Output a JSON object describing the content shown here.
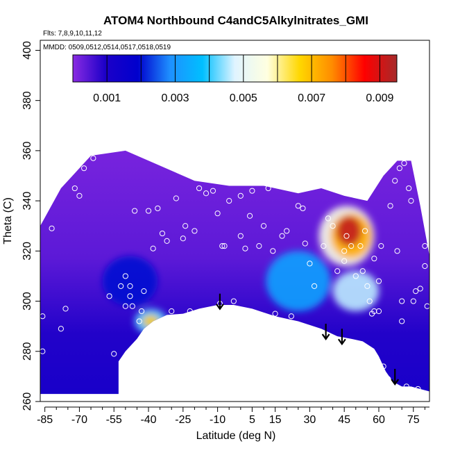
{
  "chart_data": {
    "type": "heatmap",
    "title": "ATOM4 Northbound C4andC5Alkylnitrates_GMI",
    "subtitle_flights": "Flts: 7,8,9,10,11,12",
    "subtitle_dates": "MMDD: 0509,0512,0514,0517,0518,0519",
    "xlabel": "Latitude (deg N)",
    "ylabel": "Theta (C)",
    "xlim": [
      -87,
      82
    ],
    "ylim": [
      260,
      404
    ],
    "x_ticks": [
      -85,
      -70,
      -55,
      -40,
      -25,
      -10,
      5,
      15,
      30,
      45,
      60,
      75
    ],
    "x_tick_labels": [
      "-85",
      "-70",
      "-55",
      "-40",
      "-25",
      "-10",
      "5",
      "15",
      "30",
      "45",
      "60",
      "75"
    ],
    "y_ticks": [
      260,
      280,
      300,
      320,
      340,
      360,
      380,
      400
    ],
    "y_tick_labels": [
      "260",
      "280",
      "300",
      "320",
      "340",
      "360",
      "380",
      "400"
    ],
    "colorbar": {
      "min": 0.0,
      "max": 0.0095,
      "tick_values": [
        0.001,
        0.003,
        0.005,
        0.007,
        0.009
      ],
      "tick_labels": [
        "0.001",
        "0.003",
        "0.005",
        "0.007",
        "0.009"
      ],
      "stops": [
        "#8a2be2",
        "#1c00c8",
        "#0000cd",
        "#1e90ff",
        "#00bfff",
        "#e0f4ff",
        "#ffffe0",
        "#ffd700",
        "#ff8c00",
        "#ff0000",
        "#a52a2a"
      ],
      "separators": [
        0.001,
        0.002,
        0.003,
        0.004,
        0.005,
        0.006,
        0.007,
        0.008,
        0.009
      ]
    },
    "terrain_lower_boundary": [
      [
        -87,
        263
      ],
      [
        -53,
        263
      ],
      [
        -53,
        276
      ],
      [
        -50,
        280
      ],
      [
        -45,
        285
      ],
      [
        -42,
        289
      ],
      [
        -38,
        292
      ],
      [
        -32,
        294.5
      ],
      [
        -25,
        295
      ],
      [
        -18,
        297
      ],
      [
        -10,
        298.5
      ],
      [
        -3,
        298.5
      ],
      [
        5,
        297
      ],
      [
        15,
        294
      ],
      [
        25,
        292
      ],
      [
        35,
        289
      ],
      [
        42,
        286
      ],
      [
        48,
        285
      ],
      [
        53,
        284
      ],
      [
        58,
        281
      ],
      [
        60,
        278
      ],
      [
        63,
        272
      ],
      [
        66,
        268
      ],
      [
        70,
        266
      ],
      [
        74,
        266
      ],
      [
        78,
        265
      ],
      [
        82,
        264
      ]
    ],
    "data_upper_boundary": [
      [
        -87,
        330
      ],
      [
        -78,
        345
      ],
      [
        -65,
        358
      ],
      [
        -50,
        360
      ],
      [
        -35,
        354
      ],
      [
        -20,
        348
      ],
      [
        -5,
        346
      ],
      [
        10,
        346
      ],
      [
        25,
        343
      ],
      [
        35,
        345
      ],
      [
        45,
        342
      ],
      [
        55,
        340
      ],
      [
        62,
        350
      ],
      [
        68,
        356
      ],
      [
        74,
        356
      ],
      [
        78,
        338
      ],
      [
        82,
        318
      ]
    ],
    "hotspots": [
      {
        "lat": 47,
        "theta": 328,
        "value": 0.0092,
        "rx": 5.5,
        "ry": 6
      },
      {
        "lat": 48,
        "theta": 326,
        "value": 0.0072,
        "rx": 9,
        "ry": 9
      },
      {
        "lat": 46,
        "theta": 326,
        "value": 0.0055,
        "rx": 12,
        "ry": 12
      },
      {
        "lat": -39,
        "theta": 292,
        "value": 0.0068,
        "rx": 3.5,
        "ry": 2.5
      },
      {
        "lat": -39,
        "theta": 292,
        "value": 0.0042,
        "rx": 7,
        "ry": 5
      },
      {
        "lat": 50,
        "theta": 304,
        "value": 0.0046,
        "rx": 10,
        "ry": 8
      },
      {
        "lat": 25,
        "theta": 308,
        "value": 0.0032,
        "rx": 14,
        "ry": 12
      },
      {
        "lat": -48,
        "theta": 308,
        "value": 0.002,
        "rx": 12,
        "ry": 10
      }
    ],
    "observations": [
      [
        -86,
        294
      ],
      [
        -86,
        280
      ],
      [
        -82,
        329
      ],
      [
        -78,
        289
      ],
      [
        -76,
        297
      ],
      [
        -72,
        345
      ],
      [
        -70,
        342
      ],
      [
        -68,
        353
      ],
      [
        -64,
        357
      ],
      [
        -62,
        360
      ],
      [
        -57,
        302
      ],
      [
        -55,
        279
      ],
      [
        -52,
        306
      ],
      [
        -50,
        310
      ],
      [
        -50,
        298
      ],
      [
        -48,
        302
      ],
      [
        -48,
        306
      ],
      [
        -47,
        298
      ],
      [
        -46,
        336
      ],
      [
        -44,
        292
      ],
      [
        -43,
        296
      ],
      [
        -42,
        304
      ],
      [
        -40,
        336
      ],
      [
        -38,
        321
      ],
      [
        -36,
        337
      ],
      [
        -34,
        327
      ],
      [
        -32,
        324
      ],
      [
        -30,
        296
      ],
      [
        -28,
        341
      ],
      [
        -25,
        325
      ],
      [
        -24,
        330
      ],
      [
        -22,
        296
      ],
      [
        -20,
        328
      ],
      [
        -18,
        345
      ],
      [
        -16,
        288
      ],
      [
        -15,
        343
      ],
      [
        -12,
        344
      ],
      [
        -10,
        335
      ],
      [
        -9,
        299
      ],
      [
        -8,
        322
      ],
      [
        -7,
        322
      ],
      [
        -5,
        340
      ],
      [
        -3,
        300
      ],
      [
        0,
        342
      ],
      [
        0,
        326
      ],
      [
        2,
        321
      ],
      [
        4,
        334
      ],
      [
        5,
        344
      ],
      [
        8,
        322
      ],
      [
        10,
        330
      ],
      [
        12,
        345
      ],
      [
        14,
        320
      ],
      [
        15,
        295
      ],
      [
        18,
        326
      ],
      [
        20,
        328
      ],
      [
        22,
        294
      ],
      [
        25,
        338
      ],
      [
        27,
        337
      ],
      [
        28,
        323
      ],
      [
        30,
        315
      ],
      [
        32,
        306
      ],
      [
        34,
        346
      ],
      [
        36,
        322
      ],
      [
        38,
        333
      ],
      [
        40,
        330
      ],
      [
        42,
        312
      ],
      [
        45,
        316
      ],
      [
        45,
        320
      ],
      [
        46,
        326
      ],
      [
        48,
        322
      ],
      [
        50,
        310
      ],
      [
        52,
        322
      ],
      [
        53,
        312
      ],
      [
        54,
        328
      ],
      [
        55,
        306
      ],
      [
        56,
        300
      ],
      [
        57,
        295
      ],
      [
        58,
        296
      ],
      [
        58,
        317
      ],
      [
        60,
        308
      ],
      [
        60,
        296
      ],
      [
        61,
        322
      ],
      [
        62,
        274
      ],
      [
        63,
        270
      ],
      [
        64,
        269
      ],
      [
        65,
        338
      ],
      [
        67,
        348
      ],
      [
        68,
        320
      ],
      [
        69,
        353
      ],
      [
        70,
        300
      ],
      [
        70,
        292
      ],
      [
        71,
        355
      ],
      [
        72,
        266
      ],
      [
        73,
        345
      ],
      [
        74,
        340
      ],
      [
        75,
        300
      ],
      [
        76,
        304
      ],
      [
        76,
        355
      ],
      [
        77,
        265
      ],
      [
        78,
        305
      ],
      [
        80,
        322
      ],
      [
        80,
        314
      ],
      [
        81,
        298
      ]
    ],
    "descent_markers": [
      {
        "lat": -9,
        "theta": 303
      },
      {
        "lat": 37,
        "theta": 291
      },
      {
        "lat": 44,
        "theta": 289
      },
      {
        "lat": 67,
        "theta": 273
      }
    ]
  }
}
